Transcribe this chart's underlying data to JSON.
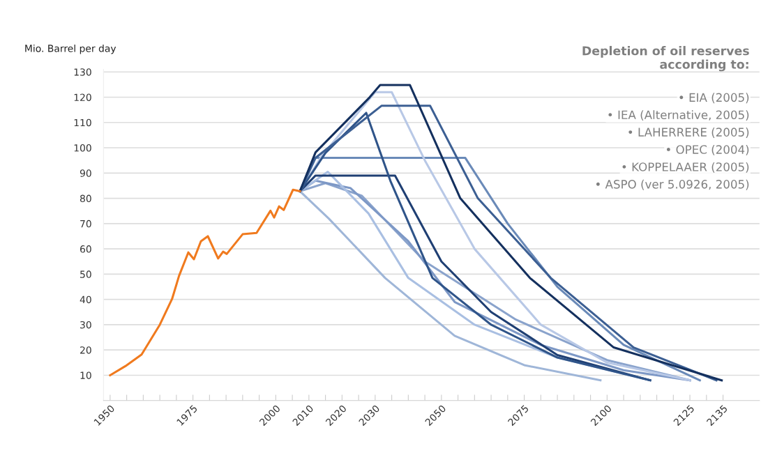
{
  "chart_data": {
    "type": "line",
    "title": "Depletion of oil reserves\naccording to:",
    "ylabel": "Mio. Barrel per day",
    "xlim": [
      1948,
      2146
    ],
    "ylim": [
      0,
      131
    ],
    "xticks": [
      1950,
      {
        "value": 1955,
        "label": null
      },
      {
        "value": 1960,
        "label": null
      },
      {
        "value": 1965,
        "label": null
      },
      {
        "value": 1970,
        "label": null
      },
      1975,
      {
        "value": 1980,
        "label": null
      },
      {
        "value": 1985,
        "label": null
      },
      {
        "value": 1990,
        "label": null
      },
      {
        "value": 1995,
        "label": null
      },
      2000,
      {
        "value": 2005,
        "label": null
      },
      2010,
      {
        "value": 2015,
        "label": null
      },
      2020,
      {
        "value": 2025,
        "label": null
      },
      2030,
      {
        "value": 2035,
        "label": null
      },
      {
        "value": 2040,
        "label": null
      },
      {
        "value": 2045,
        "label": null
      },
      2050,
      {
        "value": 2055,
        "label": null
      },
      {
        "value": 2060,
        "label": null
      },
      {
        "value": 2065,
        "label": null
      },
      {
        "value": 2070,
        "label": null
      },
      2075,
      {
        "value": 2080,
        "label": null
      },
      {
        "value": 2085,
        "label": null
      },
      {
        "value": 2090,
        "label": null
      },
      {
        "value": 2095,
        "label": null
      },
      2100,
      {
        "value": 2105,
        "label": null
      },
      {
        "value": 2110,
        "label": null
      },
      {
        "value": 2115,
        "label": null
      },
      {
        "value": 2120,
        "label": null
      },
      2125,
      {
        "value": 2130,
        "label": null
      },
      2135
    ],
    "yticks": [
      10,
      20,
      30,
      40,
      50,
      60,
      70,
      80,
      90,
      100,
      110,
      120,
      130
    ],
    "grid": "y",
    "legend": false,
    "marker": "none",
    "line_style": "solid",
    "annotations": [
      "• EIA (2005)",
      "• IEA (Alternative, 2005)",
      "• LAHERRERE (2005)",
      "• OPEC (2004)",
      "• KOPPELAAER (2005)",
      "• ASPO (ver 5.0926, 2005)"
    ],
    "series": [
      {
        "color": "#9fb6d8",
        "x": [
          2007.3,
          2016,
          2033,
          2054,
          2075,
          2098
        ],
        "values": [
          82.8,
          72,
          48.5,
          25.6,
          14,
          8
        ]
      },
      {
        "color": "#8aa3cc",
        "x": [
          2007.3,
          2015,
          2026,
          2045,
          2072.5,
          2100,
          2125
        ],
        "values": [
          82.8,
          86,
          81,
          55,
          32,
          16,
          8
        ]
      },
      {
        "color": "#7d98c6",
        "x": [
          2007.3,
          2012,
          2022.6,
          2040,
          2054,
          2080,
          2105,
          2125
        ],
        "values": [
          82.8,
          87,
          84,
          63,
          39,
          22,
          12,
          8
        ]
      },
      {
        "color": "#a9bfe2",
        "x": [
          2007.3,
          2015.7,
          2028,
          2040,
          2060,
          2085,
          2113
        ],
        "values": [
          82.8,
          90.5,
          74,
          48.5,
          30,
          17,
          8
        ]
      },
      {
        "color": "#6a8ab8",
        "x": [
          2007.3,
          2011.5,
          2057.2,
          2070,
          2085,
          2105,
          2128
        ],
        "values": [
          82.8,
          96,
          96,
          70,
          45,
          22,
          8
        ]
      },
      {
        "color": "#1f3f73",
        "x": [
          2007.3,
          2012,
          2036,
          2050,
          2065,
          2085,
          2113
        ],
        "values": [
          82.8,
          89,
          89,
          55,
          35,
          18,
          8
        ]
      },
      {
        "color": "#b8c8e6",
        "x": [
          2007.3,
          2014,
          2030,
          2035,
          2045,
          2060,
          2080,
          2100,
          2125
        ],
        "values": [
          82.8,
          97,
          122,
          122,
          95,
          60,
          30,
          15,
          8
        ]
      },
      {
        "color": "#2f5489",
        "x": [
          2007.3,
          2015,
          2027.3,
          2034.6,
          2047.3,
          2065,
          2085,
          2113
        ],
        "values": [
          82.8,
          98,
          113.8,
          86.9,
          48.5,
          30,
          17,
          8
        ]
      },
      {
        "color": "#3c5f93",
        "x": [
          2007.3,
          2012,
          2031.9,
          2046.6,
          2061,
          2083,
          2108,
          2133
        ],
        "values": [
          82.8,
          96,
          116.6,
          116.6,
          80,
          48.5,
          21,
          8
        ]
      },
      {
        "color": "#14305e",
        "x": [
          2007.3,
          2012,
          2028.3,
          2031.5,
          2040.5,
          2055.7,
          2076.7,
          2102,
          2134.6
        ],
        "values": [
          82.8,
          98.2,
          119.9,
          124.8,
          124.8,
          80,
          48.5,
          21,
          8
        ]
      },
      {
        "color": "#f07a1e",
        "x": [
          1950,
          1954.6,
          1959.5,
          1965,
          1968.7,
          1970.8,
          1973.6,
          1975.3,
          1977.4,
          1979.5,
          1982.6,
          1984.1,
          1985.2,
          1990,
          1994.2,
          1998.4,
          1999.5,
          2001,
          2002.4,
          2005.2,
          2007.3
        ],
        "values": [
          10,
          13.6,
          18.2,
          30,
          40.2,
          49.3,
          58.6,
          55.9,
          63,
          65,
          56.2,
          58.9,
          58,
          65.8,
          66.3,
          75.1,
          72.4,
          76.8,
          75.4,
          83.4,
          82.8
        ]
      }
    ]
  }
}
